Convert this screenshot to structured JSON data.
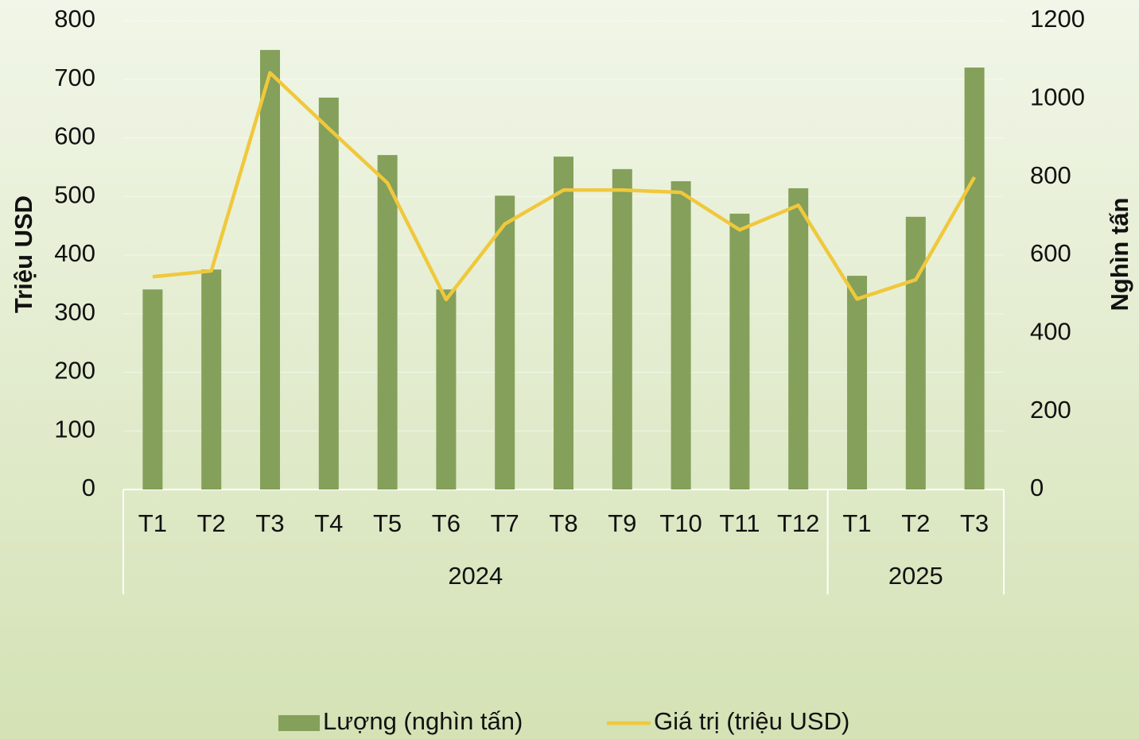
{
  "chart_data": {
    "type": "bar_line",
    "categories": [
      "T1",
      "T2",
      "T3",
      "T4",
      "T5",
      "T6",
      "T7",
      "T8",
      "T9",
      "T10",
      "T11",
      "T12",
      "T1",
      "T2",
      "T3"
    ],
    "groups": [
      {
        "label": "2024",
        "count": 12
      },
      {
        "label": "2025",
        "count": 3
      }
    ],
    "y_label": "Triệu USD",
    "y2_label": "Nghìn tấn",
    "ylim": [
      0,
      800
    ],
    "yticks": [
      0,
      100,
      200,
      300,
      400,
      500,
      600,
      700,
      800
    ],
    "y2lim": [
      0,
      1200
    ],
    "y2ticks": [
      0,
      200,
      400,
      600,
      800,
      1000,
      1200
    ],
    "grid": true,
    "legend": "bottom",
    "series": [
      {
        "name": "Lượng (nghìn tấn)",
        "type": "bar",
        "axis": "y2",
        "color": "#84a05a",
        "values": [
          512,
          563,
          1125,
          1003,
          856,
          512,
          752,
          852,
          820,
          789,
          706,
          771,
          547,
          698,
          1080
        ]
      },
      {
        "name": "Giá trị (triệu USD)",
        "type": "line",
        "axis": "y",
        "color": "#f0c83c",
        "values": [
          363,
          373,
          711,
          616,
          523,
          324,
          453,
          511,
          511,
          507,
          443,
          485,
          325,
          358,
          533
        ]
      }
    ]
  }
}
